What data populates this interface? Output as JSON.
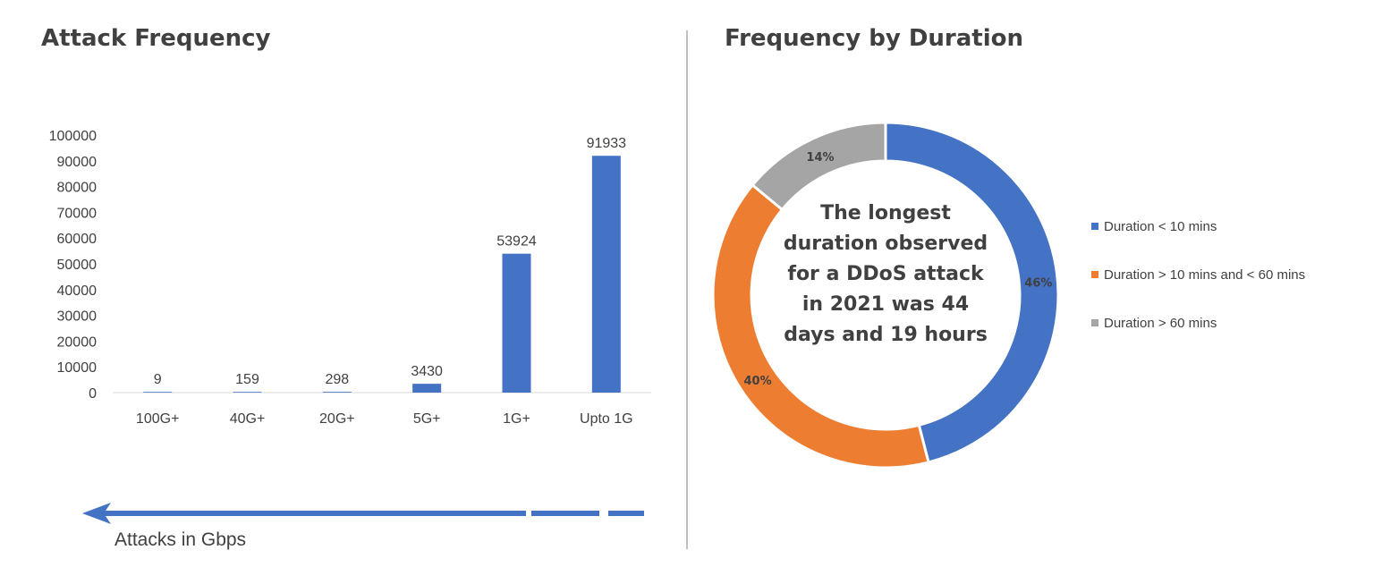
{
  "left_panel": {
    "title": "Attack Frequency",
    "arrow_caption": "Attacks in Gbps"
  },
  "right_panel": {
    "title": "Frequency by Duration",
    "center_text": "The longest duration observed for a DDoS attack in 2021 was 44 days and 19 hours"
  },
  "colors": {
    "bar": "#4472c4",
    "blue": "#4472c4",
    "orange": "#ed7d31",
    "gray": "#a5a5a5",
    "text": "#404040",
    "divider": "#bfbfbf"
  },
  "chart_data": [
    {
      "type": "bar",
      "title": "Attack Frequency",
      "categories": [
        "100G+",
        "40G+",
        "20G+",
        "5G+",
        "1G+",
        "Upto 1G"
      ],
      "values": [
        9,
        159,
        298,
        3430,
        53924,
        91933
      ],
      "ylim": [
        0,
        100000
      ],
      "yticks": [
        "0",
        "10000",
        "20000",
        "30000",
        "40000",
        "50000",
        "60000",
        "70000",
        "80000",
        "90000",
        "100000"
      ],
      "grid": false,
      "xlabel": "Attacks in Gbps",
      "ylabel": ""
    },
    {
      "type": "pie",
      "style": "donut",
      "title": "Frequency by Duration",
      "labels": [
        "Duration < 10 mins",
        "Duration > 10 mins and < 60 mins",
        "Duration > 60 mins"
      ],
      "values": [
        46,
        40,
        14
      ],
      "value_labels": [
        "46%",
        "40%",
        "14%"
      ],
      "colors": [
        "#4472c4",
        "#ed7d31",
        "#a5a5a5"
      ],
      "legend_position": "right"
    }
  ]
}
